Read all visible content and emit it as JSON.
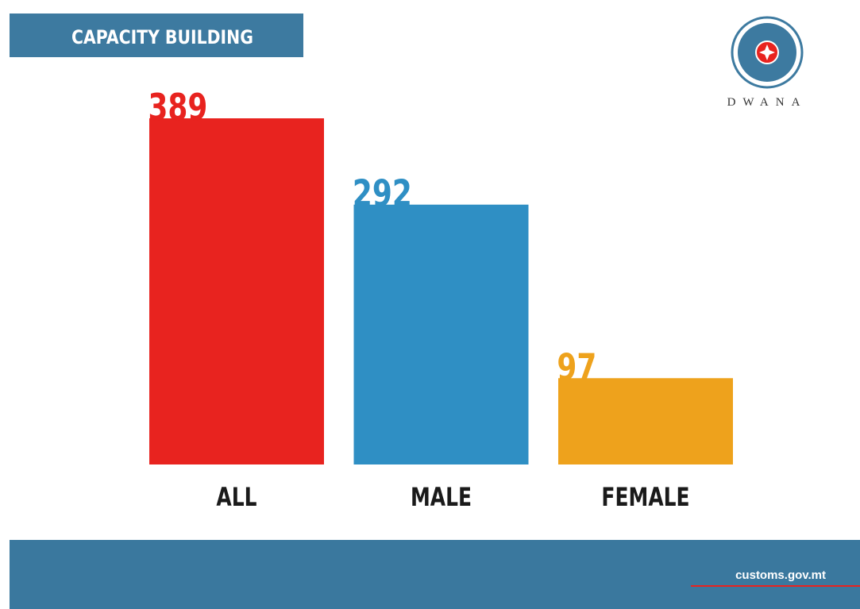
{
  "chart_data": {
    "type": "bar",
    "title": "CAPACITY BUILDING",
    "categories": [
      "ALL",
      "MALE",
      "FEMALE"
    ],
    "values": [
      389,
      292,
      97
    ],
    "colors": [
      "#e8231f",
      "#2f8fc4",
      "#eea21c"
    ]
  },
  "logo": {
    "text": "DWANA"
  },
  "footer": {
    "text": "customs.gov.mt"
  }
}
